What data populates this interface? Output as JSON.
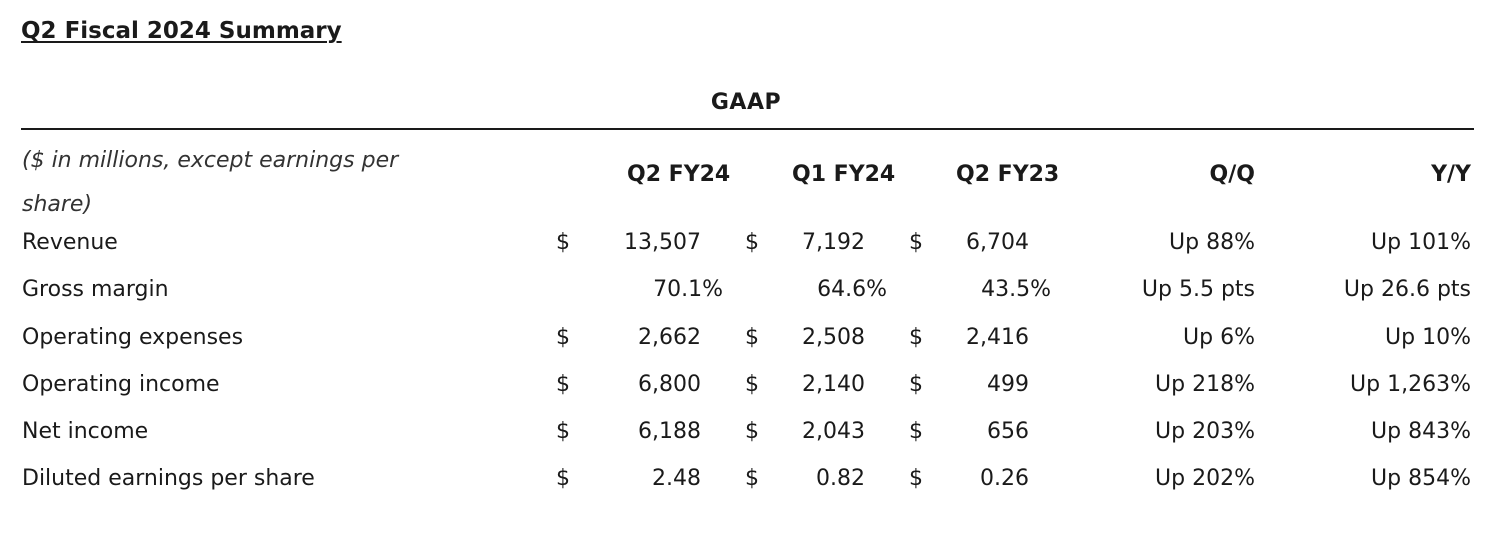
{
  "title": "Q2 Fiscal 2024 Summary",
  "section_header": "GAAP",
  "units_note": "($ in millions, except earnings per share)",
  "columns": [
    "Q2 FY24",
    "Q1 FY24",
    "Q2 FY23",
    "Q/Q",
    "Y/Y"
  ],
  "currency_symbol": "$",
  "rows": [
    {
      "label": "Revenue",
      "dollar": true,
      "values": [
        "13,507",
        "7,192",
        "6,704"
      ],
      "qq": "Up 88%",
      "yy": "Up 101%"
    },
    {
      "label": "Gross margin",
      "dollar": false,
      "values": [
        "70.1%",
        "64.6%",
        "43.5%"
      ],
      "qq": "Up 5.5 pts",
      "yy": "Up 26.6 pts"
    },
    {
      "label": "Operating expenses",
      "dollar": true,
      "values": [
        "2,662",
        "2,508",
        "2,416"
      ],
      "qq": "Up 6%",
      "yy": "Up 10%"
    },
    {
      "label": "Operating income",
      "dollar": true,
      "values": [
        "6,800",
        "2,140",
        "499"
      ],
      "qq": "Up 218%",
      "yy": "Up 1,263%"
    },
    {
      "label": "Net income",
      "dollar": true,
      "values": [
        "6,188",
        "2,043",
        "656"
      ],
      "qq": "Up 203%",
      "yy": "Up 843%"
    },
    {
      "label": "Diluted earnings per share",
      "dollar": true,
      "values": [
        "2.48",
        "0.82",
        "0.26"
      ],
      "qq": "Up 202%",
      "yy": "Up 854%"
    }
  ]
}
